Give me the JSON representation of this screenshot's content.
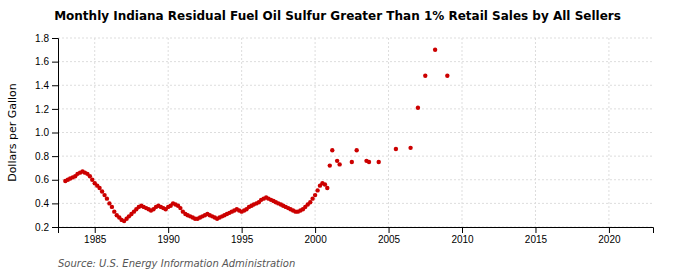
{
  "chart_data": {
    "type": "scatter",
    "title": "Monthly Indiana Residual Fuel Oil Sulfur Greater Than 1% Retail Sales by All Sellers",
    "ylabel": "Dollars per Gallon",
    "annotations": [
      "Source: U.S. Energy Information Administration"
    ],
    "color": "#cc0000",
    "grid": true,
    "xlim": [
      1982.5,
      2023
    ],
    "ylim": [
      0.2,
      1.8
    ],
    "xticks": [
      1985,
      1990,
      1995,
      2000,
      2005,
      2010,
      2015,
      2020
    ],
    "yticks": [
      0.2,
      0.4,
      0.6,
      0.8,
      {
        "value": 1.0,
        "label": "1.0"
      },
      1.2,
      1.4,
      1.6,
      1.8
    ],
    "x": [
      1983.0,
      1983.17,
      1983.33,
      1983.5,
      1983.67,
      1983.83,
      1984.0,
      1984.17,
      1984.33,
      1984.5,
      1984.67,
      1984.83,
      1985.0,
      1985.17,
      1985.33,
      1985.5,
      1985.67,
      1985.83,
      1986.0,
      1986.17,
      1986.33,
      1986.5,
      1986.67,
      1986.83,
      1987.0,
      1987.17,
      1987.33,
      1987.5,
      1987.67,
      1987.83,
      1988.0,
      1988.17,
      1988.33,
      1988.5,
      1988.67,
      1988.83,
      1989.0,
      1989.17,
      1989.33,
      1989.5,
      1989.67,
      1989.83,
      1990.0,
      1990.17,
      1990.33,
      1990.5,
      1990.67,
      1990.83,
      1991.0,
      1991.17,
      1991.33,
      1991.5,
      1991.67,
      1991.83,
      1992.0,
      1992.17,
      1992.33,
      1992.5,
      1992.67,
      1992.83,
      1993.0,
      1993.17,
      1993.33,
      1993.5,
      1993.67,
      1993.83,
      1994.0,
      1994.17,
      1994.33,
      1994.5,
      1994.67,
      1994.83,
      1995.0,
      1995.17,
      1995.33,
      1995.5,
      1995.67,
      1995.83,
      1996.0,
      1996.17,
      1996.33,
      1996.5,
      1996.67,
      1996.83,
      1997.0,
      1997.17,
      1997.33,
      1997.5,
      1997.67,
      1997.83,
      1998.0,
      1998.17,
      1998.33,
      1998.5,
      1998.67,
      1998.83,
      1999.0,
      1999.17,
      1999.33,
      1999.5,
      1999.67,
      1999.83,
      2000.0,
      2000.17,
      2000.33,
      2000.5,
      2000.67,
      2000.83,
      2001.0,
      2001.17,
      2001.5,
      2001.67,
      2002.5,
      2002.83,
      2003.5,
      2003.67,
      2004.33,
      2005.5,
      2006.5,
      2007.0,
      2007.5,
      2008.17,
      2009.0
    ],
    "values": [
      0.59,
      0.6,
      0.61,
      0.62,
      0.63,
      0.65,
      0.66,
      0.67,
      0.66,
      0.65,
      0.63,
      0.6,
      0.57,
      0.55,
      0.53,
      0.5,
      0.47,
      0.44,
      0.4,
      0.37,
      0.33,
      0.3,
      0.28,
      0.26,
      0.25,
      0.27,
      0.29,
      0.31,
      0.33,
      0.35,
      0.37,
      0.38,
      0.37,
      0.36,
      0.35,
      0.34,
      0.35,
      0.37,
      0.38,
      0.37,
      0.36,
      0.35,
      0.37,
      0.38,
      0.4,
      0.39,
      0.38,
      0.36,
      0.33,
      0.31,
      0.3,
      0.29,
      0.28,
      0.27,
      0.27,
      0.28,
      0.29,
      0.3,
      0.31,
      0.3,
      0.29,
      0.28,
      0.27,
      0.28,
      0.29,
      0.3,
      0.31,
      0.32,
      0.33,
      0.34,
      0.35,
      0.34,
      0.33,
      0.34,
      0.35,
      0.37,
      0.38,
      0.39,
      0.4,
      0.41,
      0.43,
      0.44,
      0.45,
      0.44,
      0.43,
      0.42,
      0.41,
      0.4,
      0.39,
      0.38,
      0.37,
      0.36,
      0.35,
      0.34,
      0.33,
      0.33,
      0.34,
      0.35,
      0.37,
      0.39,
      0.41,
      0.44,
      0.47,
      0.51,
      0.55,
      0.57,
      0.56,
      0.53,
      0.72,
      0.85,
      0.76,
      0.73,
      0.75,
      0.85,
      0.76,
      0.75,
      0.75,
      0.86,
      0.87,
      1.21,
      1.48,
      1.7,
      1.48
    ]
  }
}
